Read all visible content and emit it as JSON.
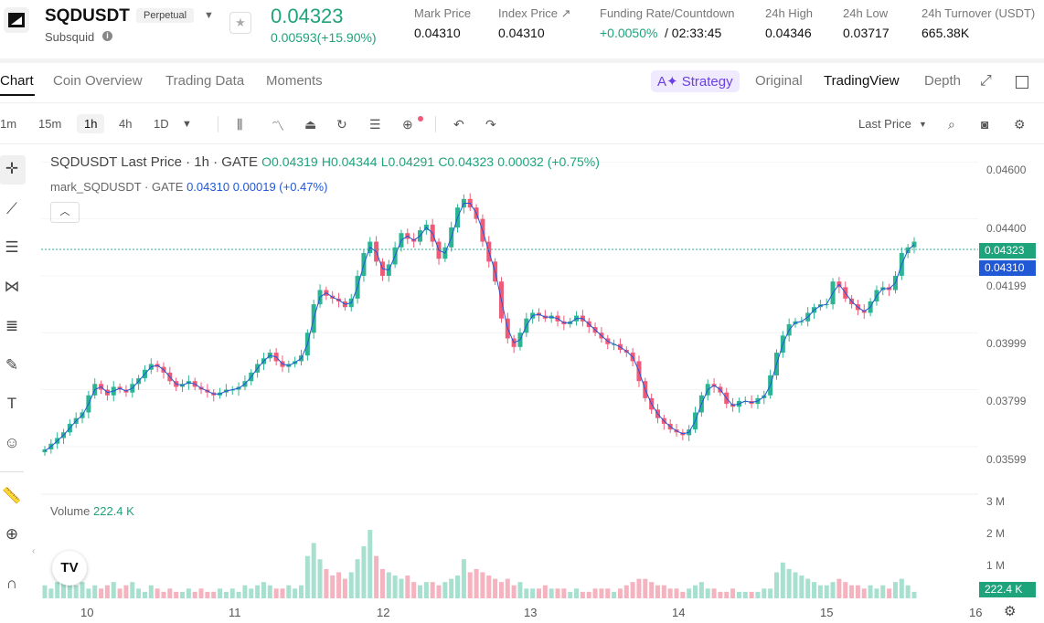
{
  "header": {
    "symbol": "SQDUSDT",
    "contract_type": "Perpetual",
    "project": "Subsquid",
    "last_price": "0.04323",
    "change": "0.00593(+15.90%)",
    "stats": [
      {
        "label": "Mark Price",
        "value": "0.04310"
      },
      {
        "label": "Index Price ↗",
        "value": "0.04310"
      },
      {
        "label": "Funding Rate/Countdown",
        "value_green": "+0.0050%",
        "value": " / 02:33:45"
      },
      {
        "label": "24h High",
        "value": "0.04346"
      },
      {
        "label": "24h Low",
        "value": "0.03717"
      },
      {
        "label": "24h Turnover (USDT)",
        "value": "665.38K"
      }
    ]
  },
  "tabs": [
    "Chart",
    "Coin Overview",
    "Trading Data",
    "Moments"
  ],
  "view_tabs": {
    "strategy": "Strategy",
    "original": "Original",
    "tradingview": "TradingView",
    "depth": "Depth"
  },
  "toolbar": {
    "timeframes": [
      "1m",
      "15m",
      "1h",
      "4h",
      "1D"
    ],
    "selected_timeframe": "1h",
    "price_type": "Last Price"
  },
  "legend": {
    "title": "SQDUSDT Last Price · 1h · GATE",
    "ohlc": {
      "open": "O0.04319",
      "high": "H0.04344",
      "low": "L0.04291",
      "close": "C0.04323",
      "change": "0.00032 (+0.75%)"
    },
    "mark_name": "mark_SQDUSDT · GATE",
    "mark_value": "0.04310",
    "mark_change": "0.00019 (+0.47%)",
    "volume_label": "Volume",
    "volume_value": "222.4 K"
  },
  "price_tags": {
    "last": "0.04323",
    "mark": "0.04310",
    "volume": "222.4 K"
  },
  "colors": {
    "up": "#2bb393",
    "down": "#ee5a77",
    "accent": "#6b3fe6",
    "mark": "#2158d6"
  },
  "chart_data": {
    "type": "candlestick",
    "y_ticks": [
      "0.04600",
      "0.04400",
      "0.04199",
      "0.03999",
      "0.03799",
      "0.03599"
    ],
    "ylim": [
      0.035,
      0.0463
    ],
    "x_ticks": [
      "10",
      "11",
      "12",
      "13",
      "14",
      "15",
      "16"
    ],
    "volume_ticks": [
      "3 M",
      "2 M",
      "1 M"
    ],
    "volume_ylim": [
      0,
      3000000
    ],
    "close": [
      0.0359,
      0.0361,
      0.0363,
      0.0365,
      0.0368,
      0.037,
      0.0372,
      0.0378,
      0.0382,
      0.038,
      0.0378,
      0.0381,
      0.038,
      0.0379,
      0.0382,
      0.0384,
      0.0387,
      0.0389,
      0.0388,
      0.0386,
      0.0383,
      0.0381,
      0.0382,
      0.0383,
      0.0381,
      0.038,
      0.0379,
      0.0378,
      0.0379,
      0.038,
      0.038,
      0.0381,
      0.0383,
      0.0386,
      0.0389,
      0.0391,
      0.0393,
      0.039,
      0.0388,
      0.0389,
      0.039,
      0.0392,
      0.04,
      0.041,
      0.0415,
      0.0413,
      0.0412,
      0.0411,
      0.0409,
      0.0412,
      0.042,
      0.0428,
      0.0432,
      0.0425,
      0.042,
      0.0424,
      0.043,
      0.0435,
      0.0433,
      0.0432,
      0.0436,
      0.0438,
      0.0432,
      0.0426,
      0.043,
      0.0437,
      0.0444,
      0.0447,
      0.0444,
      0.044,
      0.0432,
      0.0425,
      0.0418,
      0.0405,
      0.0398,
      0.0395,
      0.04,
      0.0405,
      0.0407,
      0.0406,
      0.0405,
      0.0406,
      0.0404,
      0.0403,
      0.0404,
      0.0406,
      0.0404,
      0.0402,
      0.04,
      0.0398,
      0.0396,
      0.0396,
      0.0394,
      0.0393,
      0.039,
      0.0383,
      0.0377,
      0.0373,
      0.037,
      0.0368,
      0.0366,
      0.0365,
      0.0364,
      0.0366,
      0.0372,
      0.0378,
      0.0382,
      0.0381,
      0.0379,
      0.0375,
      0.0374,
      0.0376,
      0.0376,
      0.0375,
      0.0377,
      0.0378,
      0.0385,
      0.0393,
      0.0399,
      0.0403,
      0.0404,
      0.0404,
      0.0407,
      0.0409,
      0.041,
      0.041,
      0.0418,
      0.0416,
      0.0412,
      0.041,
      0.0408,
      0.0407,
      0.0411,
      0.0415,
      0.0416,
      0.0415,
      0.042,
      0.0428,
      0.043,
      0.0432
    ],
    "volume": [
      0.4,
      0.3,
      0.5,
      0.6,
      0.5,
      0.4,
      0.5,
      0.3,
      0.4,
      0.3,
      0.4,
      0.5,
      0.3,
      0.4,
      0.5,
      0.3,
      0.2,
      0.4,
      0.3,
      0.2,
      0.3,
      0.2,
      0.2,
      0.3,
      0.2,
      0.3,
      0.2,
      0.2,
      0.3,
      0.2,
      0.3,
      0.2,
      0.4,
      0.3,
      0.4,
      0.5,
      0.4,
      0.3,
      0.3,
      0.4,
      0.3,
      0.4,
      1.3,
      1.7,
      1.2,
      0.9,
      0.7,
      0.8,
      0.6,
      0.8,
      1.2,
      1.6,
      2.1,
      1.3,
      0.9,
      0.8,
      0.7,
      0.6,
      0.7,
      0.5,
      0.4,
      0.5,
      0.5,
      0.4,
      0.5,
      0.6,
      0.7,
      1.2,
      0.8,
      0.9,
      0.8,
      0.7,
      0.6,
      0.5,
      0.6,
      0.4,
      0.5,
      0.3,
      0.3,
      0.3,
      0.4,
      0.3,
      0.3,
      0.3,
      0.2,
      0.3,
      0.2,
      0.2,
      0.3,
      0.3,
      0.3,
      0.2,
      0.3,
      0.4,
      0.5,
      0.6,
      0.6,
      0.5,
      0.4,
      0.4,
      0.3,
      0.3,
      0.2,
      0.3,
      0.4,
      0.5,
      0.3,
      0.3,
      0.2,
      0.2,
      0.3,
      0.2,
      0.2,
      0.2,
      0.2,
      0.3,
      0.3,
      0.8,
      1.1,
      0.9,
      0.8,
      0.7,
      0.6,
      0.5,
      0.4,
      0.4,
      0.5,
      0.6,
      0.5,
      0.4,
      0.4,
      0.3,
      0.4,
      0.3,
      0.4,
      0.3,
      0.5,
      0.6,
      0.4,
      0.2
    ]
  }
}
